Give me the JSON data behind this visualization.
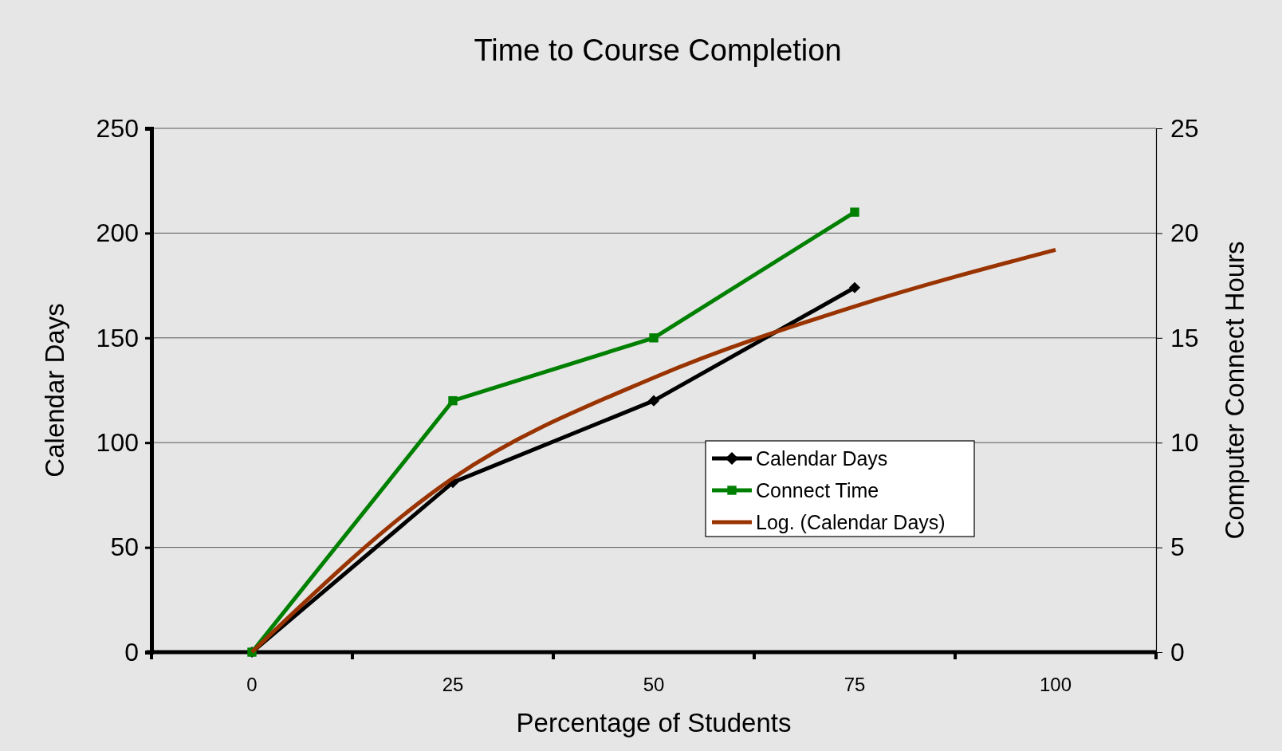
{
  "chart_data": {
    "type": "line",
    "title": "Time to Course Completion",
    "xlabel": "Percentage of Students",
    "ylabel": "Calendar Days",
    "y2label": "Computer Connect Hours",
    "categories": [
      "0",
      "25",
      "50",
      "75",
      "100"
    ],
    "series": [
      {
        "name": "Calendar Days",
        "color": "#000000",
        "marker": "diamond",
        "values": [
          0,
          81,
          120,
          174,
          null
        ]
      },
      {
        "name": "Connect Time",
        "color": "#008000",
        "marker": "square",
        "axis": "y2",
        "values": [
          0,
          12,
          15,
          21,
          null
        ]
      },
      {
        "name": "Log. (Calendar Days)",
        "color": "#993300",
        "marker": "none",
        "values": [
          0,
          83,
          131,
          165,
          192
        ]
      }
    ],
    "ylim": [
      0,
      250
    ],
    "yticks": [
      0,
      50,
      100,
      150,
      200,
      250
    ],
    "y2lim": [
      0,
      25
    ],
    "y2ticks": [
      0,
      5,
      10,
      15,
      20,
      25
    ],
    "grid": "y",
    "legend": "right"
  }
}
